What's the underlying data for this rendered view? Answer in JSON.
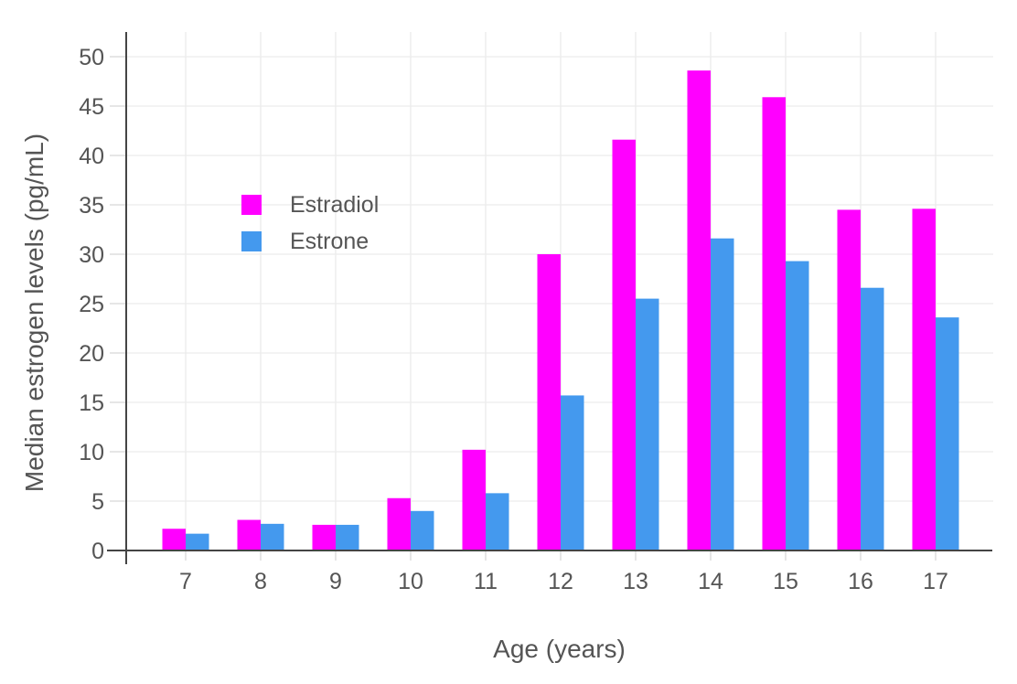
{
  "chart_data": {
    "type": "bar",
    "xlabel": "Age (years)",
    "ylabel": "Median estrogen levels (pg/mL)",
    "categories": [
      "7",
      "8",
      "9",
      "10",
      "11",
      "12",
      "13",
      "14",
      "15",
      "16",
      "17"
    ],
    "series": [
      {
        "name": "Estradiol",
        "color": "#FF00FF",
        "values": [
          2.2,
          3.1,
          2.6,
          5.3,
          10.2,
          30.0,
          41.6,
          48.6,
          45.9,
          34.5,
          34.6
        ]
      },
      {
        "name": "Estrone",
        "color": "#4499EE",
        "values": [
          1.7,
          2.7,
          2.6,
          4.0,
          5.8,
          15.7,
          25.5,
          31.6,
          29.3,
          26.6,
          23.6
        ]
      }
    ],
    "ylim": [
      0,
      52.5
    ],
    "yticks": [
      0,
      5,
      10,
      15,
      20,
      25,
      30,
      35,
      40,
      45,
      50
    ],
    "grid": true,
    "legend_position": "inside-top-left"
  },
  "style": {
    "background": "#FFFFFF",
    "axis_line_color": "#444444",
    "grid_color": "#ECECEC",
    "tick_color": "#D8D8D8",
    "text_color": "#555555"
  }
}
